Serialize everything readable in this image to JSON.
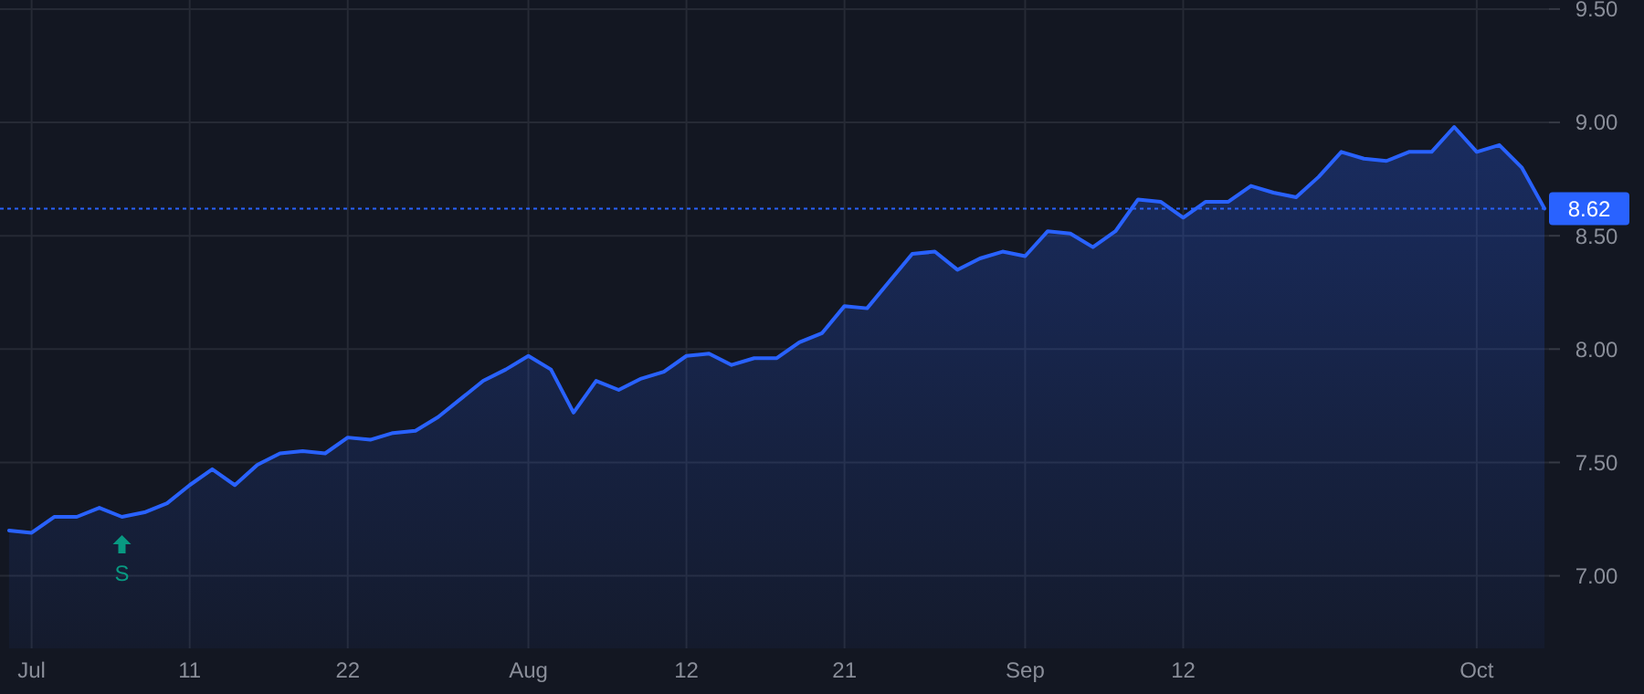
{
  "chart_data": {
    "type": "area",
    "categories": [
      null,
      "Jul",
      null,
      null,
      null,
      null,
      null,
      null,
      "11",
      null,
      null,
      null,
      null,
      null,
      null,
      "22",
      null,
      null,
      null,
      null,
      null,
      null,
      null,
      "Aug",
      null,
      null,
      null,
      null,
      null,
      null,
      "12",
      null,
      null,
      null,
      null,
      null,
      null,
      "21",
      null,
      null,
      null,
      null,
      null,
      null,
      null,
      "Sep",
      null,
      null,
      null,
      null,
      null,
      null,
      "12",
      null,
      null,
      null,
      null,
      null,
      null,
      null,
      null,
      null,
      null,
      null,
      null,
      "Oct",
      null,
      null,
      null
    ],
    "series": [
      {
        "color": "#2962ff",
        "values": [
          7.2,
          7.19,
          7.26,
          7.26,
          7.3,
          7.26,
          7.28,
          7.32,
          7.4,
          7.47,
          7.4,
          7.49,
          7.54,
          7.55,
          7.54,
          7.61,
          7.6,
          7.63,
          7.64,
          7.7,
          7.78,
          7.86,
          7.91,
          7.97,
          7.91,
          7.72,
          7.86,
          7.82,
          7.87,
          7.9,
          7.97,
          7.98,
          7.93,
          7.96,
          7.96,
          8.03,
          8.07,
          8.19,
          8.18,
          8.3,
          8.42,
          8.43,
          8.35,
          8.4,
          8.43,
          8.41,
          8.52,
          8.51,
          8.45,
          8.52,
          8.66,
          8.65,
          8.58,
          8.65,
          8.65,
          8.72,
          8.69,
          8.67,
          8.76,
          8.87,
          8.84,
          8.83,
          8.87,
          8.87,
          8.98,
          8.87,
          8.9,
          8.8,
          8.62
        ]
      }
    ],
    "ylim": [
      6.68,
      9.54
    ],
    "yticks": [
      {
        "value": 7,
        "label": "7.00"
      },
      {
        "value": 7.5,
        "label": "7.50"
      },
      {
        "value": 8,
        "label": "8.00"
      },
      {
        "value": 8.5,
        "label": "8.50"
      },
      {
        "value": 9,
        "label": "9.00"
      },
      {
        "value": 9.5,
        "label": "9.50"
      }
    ],
    "grid": true,
    "ref_lines": [
      {
        "axis": "y",
        "value": 8.62,
        "label": "8.62",
        "color": "#2962ff",
        "line_style": "dotted"
      }
    ],
    "annotations": [
      "S"
    ]
  }
}
